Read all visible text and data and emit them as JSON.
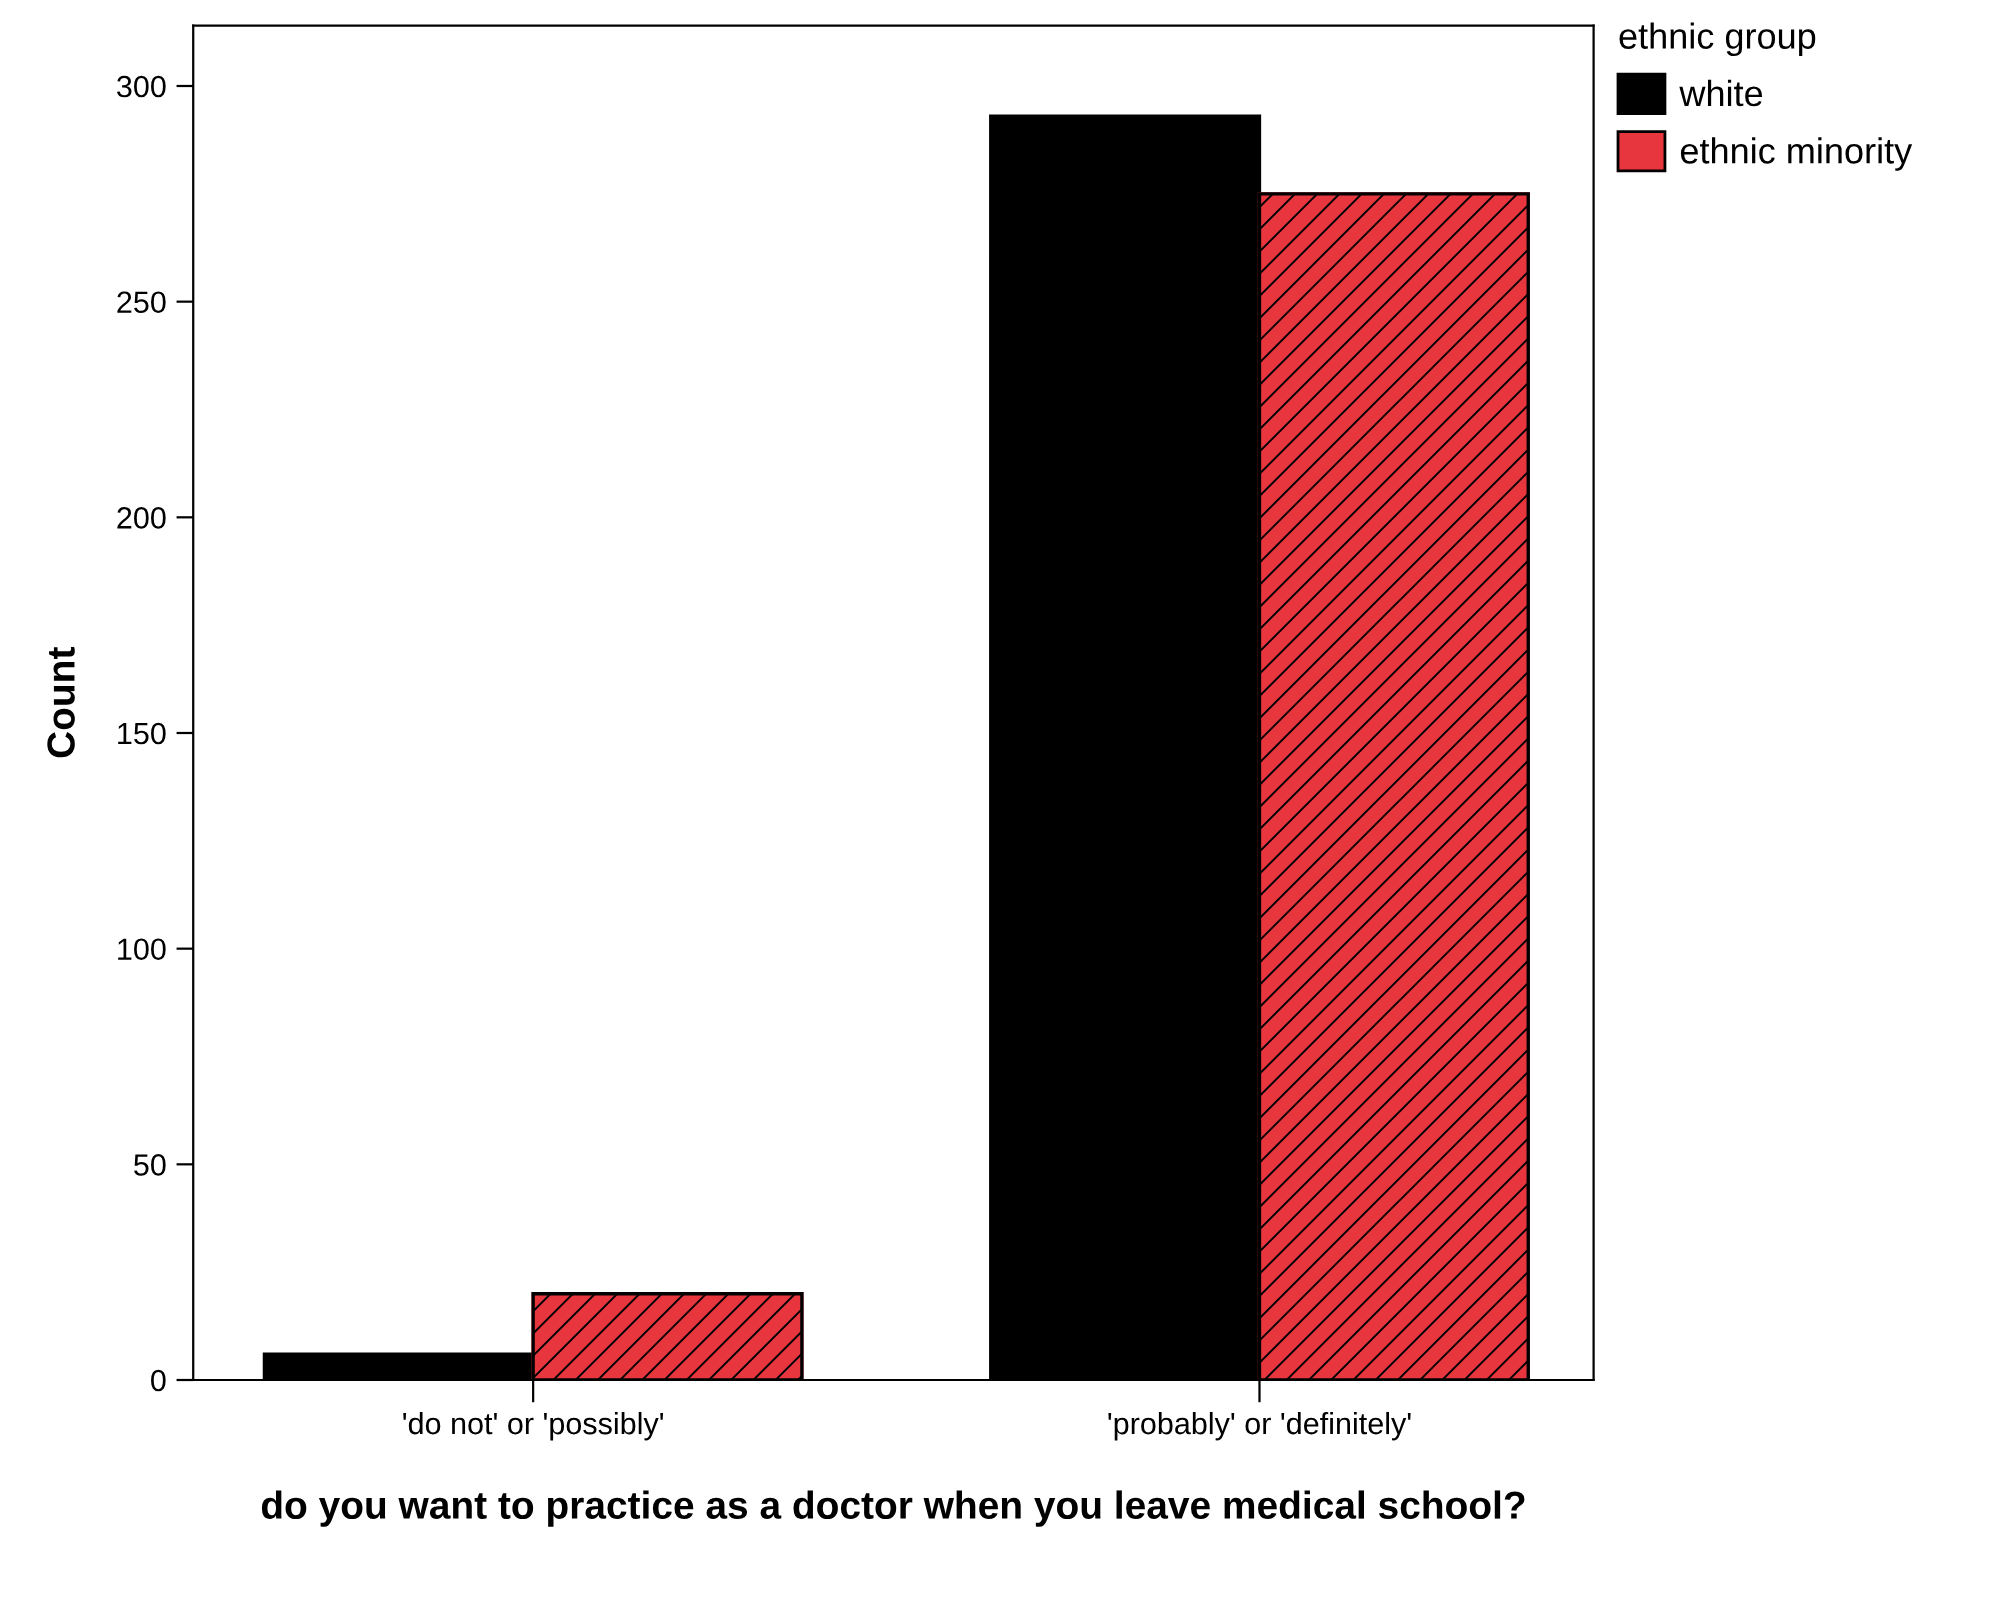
{
  "chart_data": {
    "type": "bar",
    "xlabel": "do you want to practice as a doctor when you leave medical school?",
    "ylabel": "Count",
    "legend_title": "ethnic group",
    "categories": [
      "'do not' or 'possibly'",
      "'probably' or 'definitely'"
    ],
    "series": [
      {
        "name": "white",
        "color": "#000000",
        "values": [
          6,
          293
        ]
      },
      {
        "name": "ethnic minority",
        "color": "#e8363f",
        "values": [
          20,
          275
        ]
      }
    ],
    "ylim": [
      0,
      314
    ],
    "yticks": [
      0,
      50,
      100,
      150,
      200,
      250,
      300
    ],
    "grid": false,
    "legend": "top right"
  }
}
